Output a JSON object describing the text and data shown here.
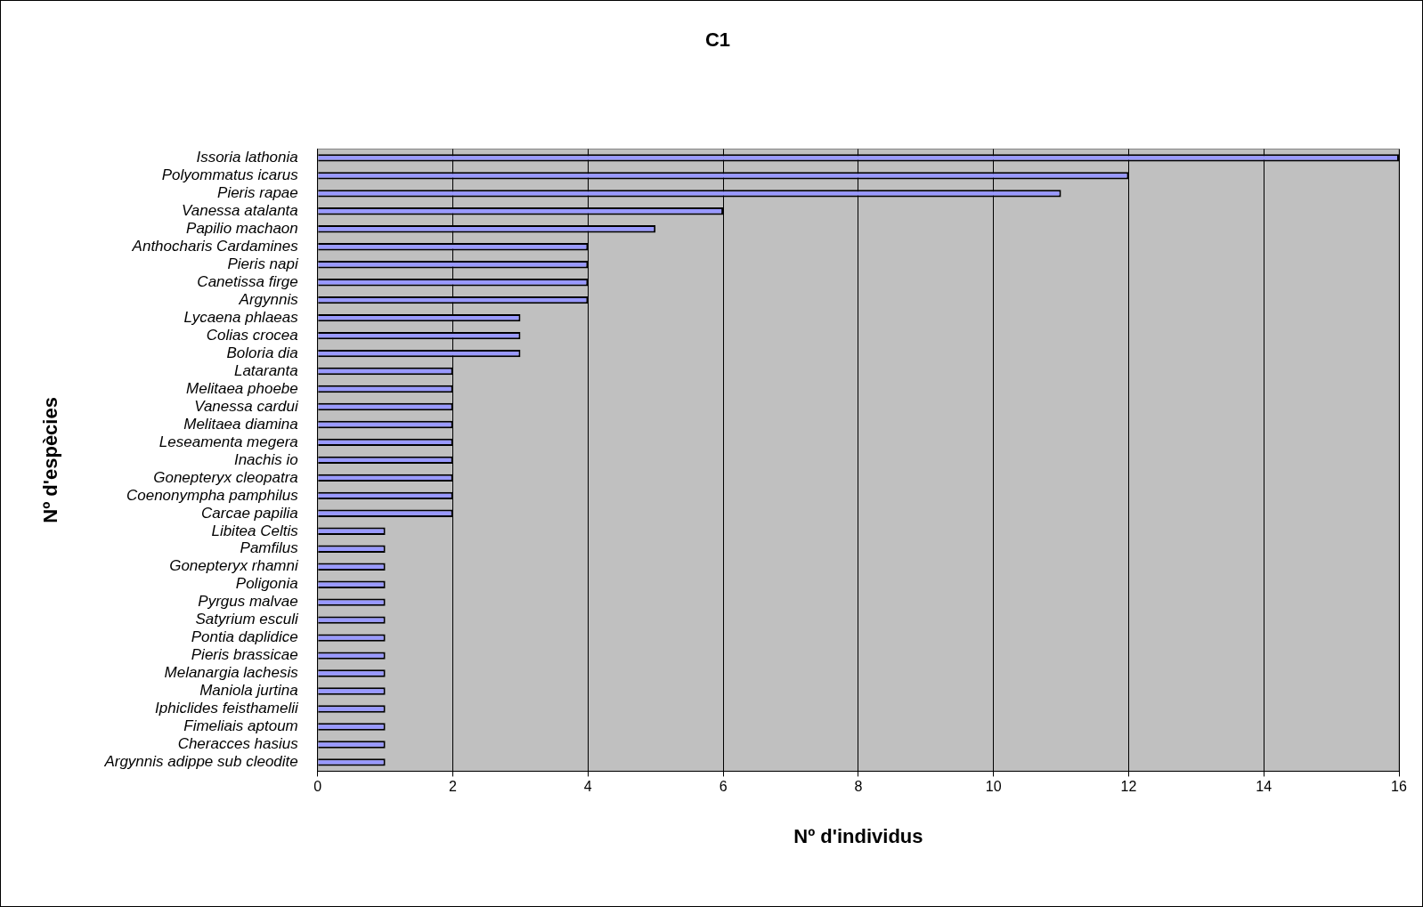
{
  "chart_data": {
    "type": "bar",
    "orientation": "horizontal",
    "title": "C1",
    "xlabel": "Nº d'individus",
    "ylabel": "Nº d'espècies",
    "categories": [
      "Issoria lathonia",
      "Polyommatus icarus",
      "Pieris rapae",
      "Vanessa atalanta",
      "Papilio machaon",
      "Anthocharis Cardamines",
      "Pieris napi",
      "Canetissa firge",
      "Argynnis",
      "Lycaena phlaeas",
      "Colias crocea",
      "Boloria dia",
      "Lataranta",
      "Melitaea phoebe",
      "Vanessa cardui",
      "Melitaea diamina",
      "Leseamenta megera",
      "Inachis io",
      "Gonepteryx cleopatra",
      "Coenonympha pamphilus",
      "Carcae papilia",
      "Libitea Celtis",
      "Pamfilus",
      "Gonepteryx rhamni",
      "Poligonia",
      "Pyrgus malvae",
      "Satyrium esculi",
      "Pontia daplidice",
      "Pieris brassicae",
      "Melanargia lachesis",
      "Maniola jurtina",
      "Iphiclides feisthamelii",
      "Fimeliais aptoum",
      "Cheracces hasius",
      "Argynnis adippe sub cleodite"
    ],
    "values": [
      16,
      12,
      11,
      6,
      5,
      4,
      4,
      4,
      4,
      3,
      3,
      3,
      2,
      2,
      2,
      2,
      2,
      2,
      2,
      2,
      2,
      1,
      1,
      1,
      1,
      1,
      1,
      1,
      1,
      1,
      1,
      1,
      1,
      1,
      1
    ],
    "color": "#9999ff",
    "xlim": [
      0,
      16
    ],
    "xticks": [
      0,
      2,
      4,
      6,
      8,
      10,
      12,
      14,
      16
    ],
    "grid": "x",
    "legend": false
  }
}
